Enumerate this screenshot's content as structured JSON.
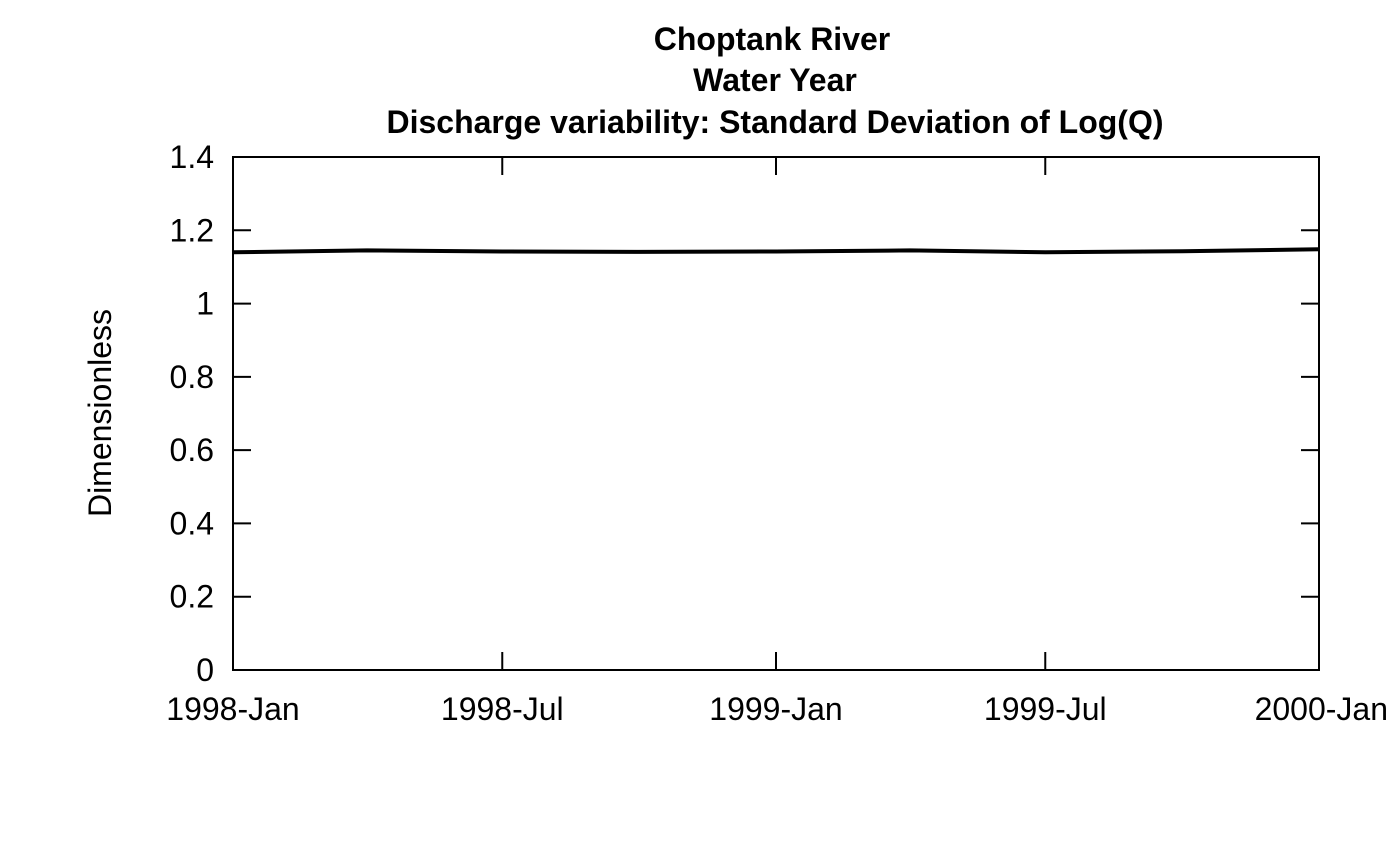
{
  "chart_data": {
    "type": "line",
    "title_lines": [
      "Choptank River",
      "Water Year",
      "Discharge variability: Standard Deviation of Log(Q)"
    ],
    "xlabel": "",
    "ylabel": "Dimensionless",
    "xlim": [
      "1998-01-01",
      "2000-01-01"
    ],
    "ylim": [
      0,
      1.4
    ],
    "x_ticks": [
      {
        "date": "1998-01-01",
        "label": "1998-Jan"
      },
      {
        "date": "1998-07-01",
        "label": "1998-Jul"
      },
      {
        "date": "1999-01-01",
        "label": "1999-Jan"
      },
      {
        "date": "1999-07-01",
        "label": "1999-Jul"
      },
      {
        "date": "2000-01-01",
        "label": "2000-Jan"
      }
    ],
    "y_ticks": [
      {
        "value": 0,
        "label": "0"
      },
      {
        "value": 0.2,
        "label": "0.2"
      },
      {
        "value": 0.4,
        "label": "0.4"
      },
      {
        "value": 0.6,
        "label": "0.6"
      },
      {
        "value": 0.8,
        "label": "0.8"
      },
      {
        "value": 1.0,
        "label": "1"
      },
      {
        "value": 1.2,
        "label": "1.2"
      },
      {
        "value": 1.4,
        "label": "1.4"
      }
    ],
    "grid": false,
    "series": [
      {
        "color": "#000000",
        "x": [
          "1998-01-01",
          "1998-04-01",
          "1998-07-01",
          "1998-10-01",
          "1999-01-01",
          "1999-04-01",
          "1999-07-01",
          "1999-10-01",
          "2000-01-01"
        ],
        "y": [
          1.14,
          1.145,
          1.142,
          1.141,
          1.142,
          1.145,
          1.14,
          1.143,
          1.148
        ]
      }
    ]
  }
}
